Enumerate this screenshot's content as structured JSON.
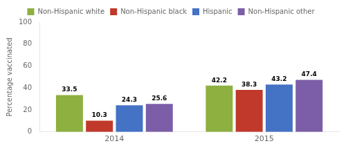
{
  "chart_data": {
    "type": "bar",
    "categories": [
      "2014",
      "2015"
    ],
    "series": [
      {
        "name": "Non-Hispanic white",
        "color": "#8DB040",
        "values": [
          33.5,
          42.2
        ]
      },
      {
        "name": "Non-Hispanic black",
        "color": "#C0392B",
        "values": [
          10.3,
          38.3
        ]
      },
      {
        "name": "Hispanic",
        "color": "#4472C4",
        "values": [
          24.3,
          43.2
        ]
      },
      {
        "name": "Non-Hispanic other",
        "color": "#7B5EA7",
        "values": [
          25.6,
          47.4
        ]
      }
    ],
    "ylabel": "Percentage vaccinated",
    "ylim": [
      0,
      100
    ],
    "yticks": [
      0,
      20,
      40,
      60,
      80,
      100
    ],
    "grid": false,
    "legend": "top",
    "data_labels": true
  }
}
